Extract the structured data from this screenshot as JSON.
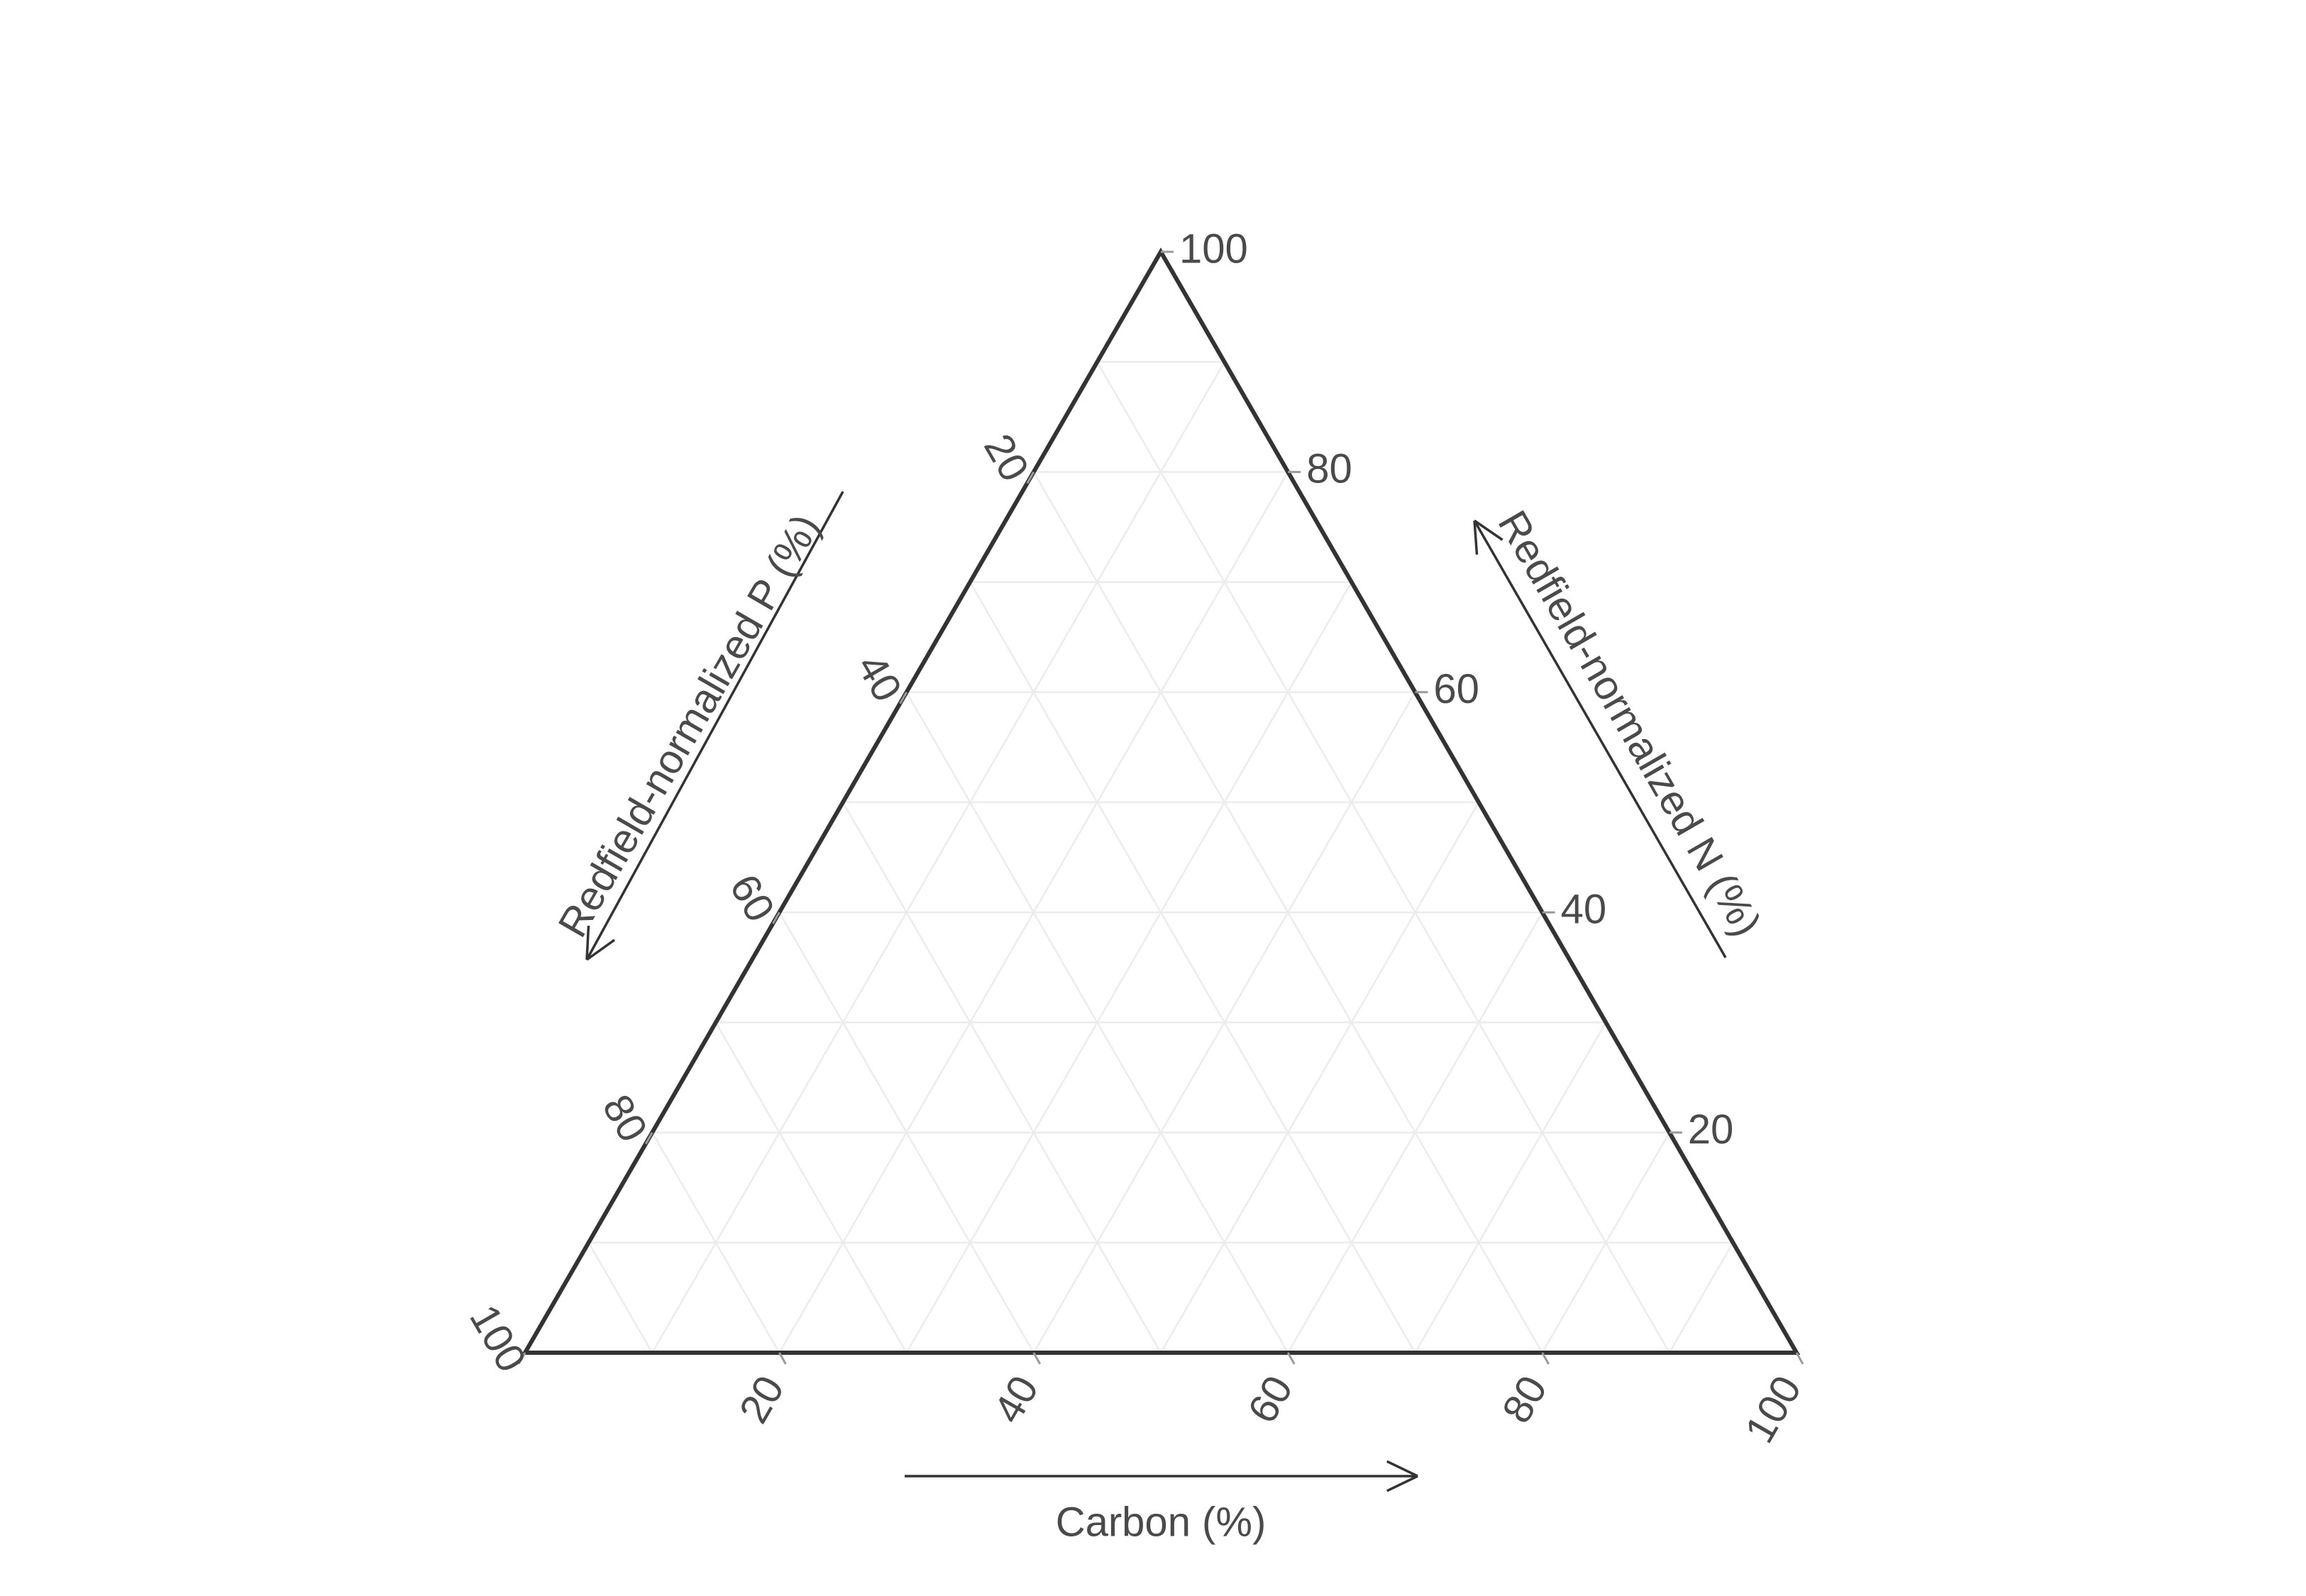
{
  "chart_data": {
    "type": "ternary",
    "title": "",
    "axes": {
      "carbon": {
        "label": "Carbon (%)",
        "ticks": [
          "20",
          "40",
          "60",
          "80",
          "100"
        ],
        "range": [
          0,
          100
        ]
      },
      "nitrogen": {
        "label": "Redfield-normalized N (%)",
        "ticks": [
          "20",
          "40",
          "60",
          "80",
          "100"
        ],
        "range": [
          0,
          100
        ]
      },
      "phosphorus": {
        "label": "Redfield-normalized P (%)",
        "ticks": [
          "20",
          "40",
          "60",
          "80",
          "100"
        ],
        "range": [
          0,
          100
        ]
      }
    },
    "grid": true,
    "grid_step": 10,
    "points": [],
    "colors": {
      "frame": "#333333",
      "grid": "#ececec",
      "text": "#4a4a4a"
    }
  }
}
